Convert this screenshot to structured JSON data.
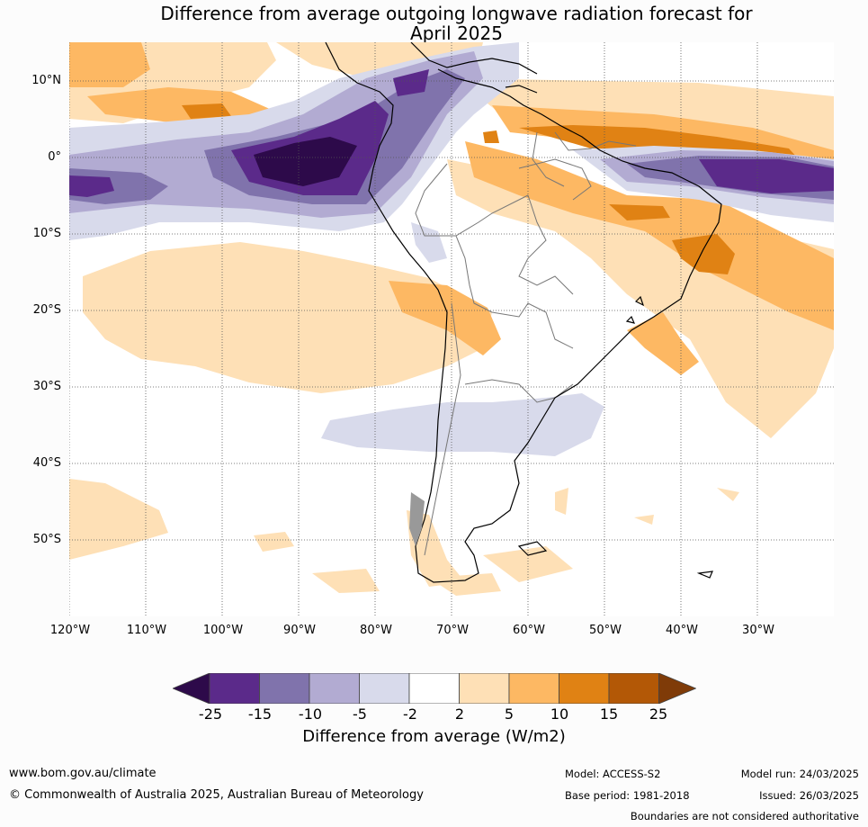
{
  "title": {
    "line1": "Difference from average outgoing longwave radiation forecast for",
    "line2": "April 2025"
  },
  "map": {
    "lat_labels": [
      "10°N",
      "0°",
      "10°S",
      "20°S",
      "30°S",
      "40°S",
      "50°S"
    ],
    "lon_labels": [
      "120°W",
      "110°W",
      "100°W",
      "90°W",
      "80°W",
      "70°W",
      "60°W",
      "50°W",
      "40°W",
      "30°W"
    ]
  },
  "colorbar": {
    "ticks": [
      "-25",
      "-15",
      "-10",
      "-5",
      "-2",
      "2",
      "5",
      "10",
      "15",
      "25"
    ],
    "colors": [
      "#2d0a4a",
      "#5b2a8a",
      "#8073ac",
      "#b2abd2",
      "#d8daeb",
      "#ffffff",
      "#fee0b6",
      "#fdb863",
      "#e08214",
      "#b35806",
      "#7f3b08"
    ],
    "label": "Difference from average (W/m2)"
  },
  "footer": {
    "website": "www.bom.gov.au/climate",
    "copyright": "© Commonwealth of Australia 2025, Australian Bureau of Meteorology",
    "model": "Model: ACCESS-S2",
    "model_run": "Model run: 24/03/2025",
    "base_period": "Base period: 1981-2018",
    "issued": "Issued: 26/03/2025",
    "disclaimer": "Boundaries are not considered authoritative"
  }
}
